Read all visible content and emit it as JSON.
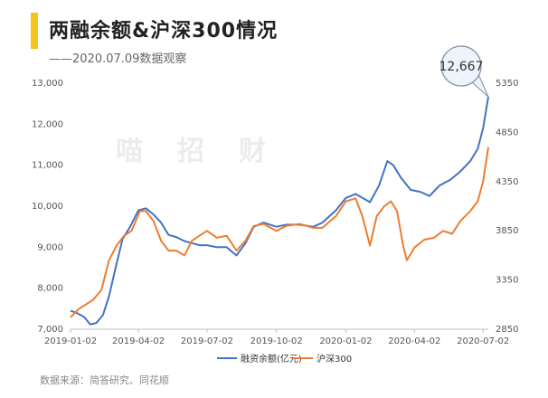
{
  "header": {
    "title": "两融余额&沪深300情况",
    "subtitle": "——2020.07.09数据观察",
    "watermark": "喵招财"
  },
  "footer": {
    "source": "数据来源：简答研究、同花顺"
  },
  "colors": {
    "margin": "#4472c4",
    "hs300": "#ed7d31",
    "accent": "#f6c21c"
  },
  "chart_data": {
    "type": "line",
    "title": "两融余额&沪深300情况",
    "callout": "12,667",
    "x_ticks": [
      "2019-01-02",
      "2019-04-02",
      "2019-07-02",
      "2019-10-02",
      "2020-01-02",
      "2020-04-02",
      "2020-07-02"
    ],
    "y_left": {
      "ticks": [
        "7,000",
        "8,000",
        "9,000",
        "10,000",
        "11,000",
        "12,000",
        "13,000"
      ],
      "range": [
        7000,
        13000
      ]
    },
    "y_right": {
      "ticks": [
        "2850",
        "3350",
        "3850",
        "4350",
        "4850",
        "5350"
      ],
      "range": [
        2850,
        5350
      ]
    },
    "series": [
      {
        "name": "融资余额(亿元)",
        "axis": "left",
        "points": [
          [
            "2019-01-02",
            7450
          ],
          [
            "2019-01-10",
            7400
          ],
          [
            "2019-01-20",
            7300
          ],
          [
            "2019-01-28",
            7120
          ],
          [
            "2019-02-05",
            7150
          ],
          [
            "2019-02-14",
            7350
          ],
          [
            "2019-02-22",
            7800
          ],
          [
            "2019-03-04",
            8600
          ],
          [
            "2019-03-12",
            9200
          ],
          [
            "2019-03-22",
            9500
          ],
          [
            "2019-04-02",
            9900
          ],
          [
            "2019-04-12",
            9950
          ],
          [
            "2019-04-22",
            9800
          ],
          [
            "2019-05-02",
            9600
          ],
          [
            "2019-05-12",
            9300
          ],
          [
            "2019-05-22",
            9250
          ],
          [
            "2019-06-02",
            9150
          ],
          [
            "2019-06-12",
            9100
          ],
          [
            "2019-06-22",
            9050
          ],
          [
            "2019-07-02",
            9050
          ],
          [
            "2019-07-15",
            9000
          ],
          [
            "2019-07-28",
            9000
          ],
          [
            "2019-08-10",
            8800
          ],
          [
            "2019-08-22",
            9100
          ],
          [
            "2019-09-02",
            9500
          ],
          [
            "2019-09-15",
            9600
          ],
          [
            "2019-10-02",
            9500
          ],
          [
            "2019-10-15",
            9550
          ],
          [
            "2019-11-02",
            9550
          ],
          [
            "2019-11-20",
            9500
          ],
          [
            "2019-12-02",
            9600
          ],
          [
            "2019-12-20",
            9900
          ],
          [
            "2020-01-02",
            10200
          ],
          [
            "2020-01-15",
            10300
          ],
          [
            "2020-02-03",
            10100
          ],
          [
            "2020-02-15",
            10500
          ],
          [
            "2020-02-26",
            11100
          ],
          [
            "2020-03-05",
            11000
          ],
          [
            "2020-03-15",
            10700
          ],
          [
            "2020-03-28",
            10400
          ],
          [
            "2020-04-10",
            10350
          ],
          [
            "2020-04-22",
            10250
          ],
          [
            "2020-05-05",
            10500
          ],
          [
            "2020-05-20",
            10650
          ],
          [
            "2020-06-02",
            10850
          ],
          [
            "2020-06-15",
            11100
          ],
          [
            "2020-06-25",
            11400
          ],
          [
            "2020-07-02",
            11900
          ],
          [
            "2020-07-09",
            12667
          ]
        ]
      },
      {
        "name": "沪深300",
        "axis": "right",
        "points": [
          [
            "2019-01-02",
            2970
          ],
          [
            "2019-01-12",
            3050
          ],
          [
            "2019-01-22",
            3100
          ],
          [
            "2019-02-01",
            3150
          ],
          [
            "2019-02-12",
            3250
          ],
          [
            "2019-02-22",
            3550
          ],
          [
            "2019-03-04",
            3700
          ],
          [
            "2019-03-14",
            3800
          ],
          [
            "2019-03-24",
            3850
          ],
          [
            "2019-04-04",
            4050
          ],
          [
            "2019-04-12",
            4050
          ],
          [
            "2019-04-22",
            3950
          ],
          [
            "2019-05-02",
            3750
          ],
          [
            "2019-05-12",
            3650
          ],
          [
            "2019-05-22",
            3650
          ],
          [
            "2019-06-02",
            3600
          ],
          [
            "2019-06-12",
            3750
          ],
          [
            "2019-06-22",
            3800
          ],
          [
            "2019-07-02",
            3850
          ],
          [
            "2019-07-15",
            3780
          ],
          [
            "2019-07-28",
            3800
          ],
          [
            "2019-08-10",
            3650
          ],
          [
            "2019-08-22",
            3750
          ],
          [
            "2019-09-02",
            3900
          ],
          [
            "2019-09-15",
            3920
          ],
          [
            "2019-10-02",
            3850
          ],
          [
            "2019-10-15",
            3900
          ],
          [
            "2019-11-02",
            3920
          ],
          [
            "2019-11-20",
            3880
          ],
          [
            "2019-12-02",
            3880
          ],
          [
            "2019-12-20",
            4000
          ],
          [
            "2020-01-02",
            4150
          ],
          [
            "2020-01-15",
            4180
          ],
          [
            "2020-01-24",
            4000
          ],
          [
            "2020-02-03",
            3700
          ],
          [
            "2020-02-12",
            4000
          ],
          [
            "2020-02-22",
            4100
          ],
          [
            "2020-03-02",
            4150
          ],
          [
            "2020-03-10",
            4050
          ],
          [
            "2020-03-18",
            3700
          ],
          [
            "2020-03-23",
            3550
          ],
          [
            "2020-04-02",
            3680
          ],
          [
            "2020-04-15",
            3760
          ],
          [
            "2020-04-28",
            3780
          ],
          [
            "2020-05-10",
            3850
          ],
          [
            "2020-05-22",
            3820
          ],
          [
            "2020-06-02",
            3950
          ],
          [
            "2020-06-15",
            4050
          ],
          [
            "2020-06-25",
            4150
          ],
          [
            "2020-07-02",
            4350
          ],
          [
            "2020-07-09",
            4700
          ]
        ]
      }
    ]
  }
}
